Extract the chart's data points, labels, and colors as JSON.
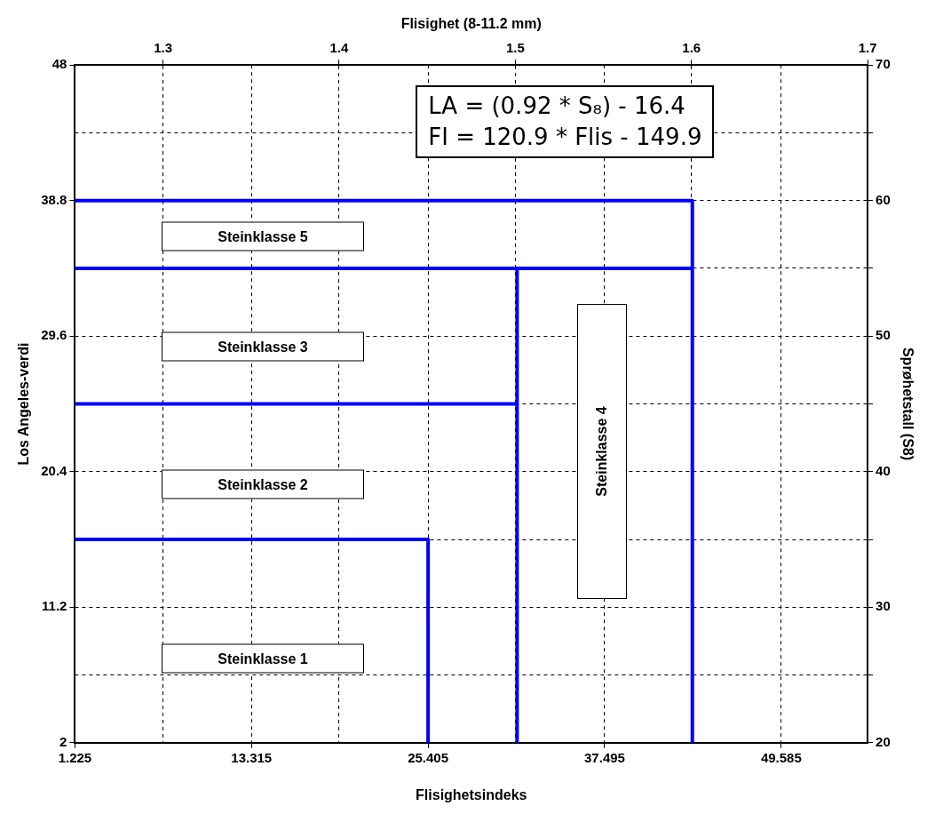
{
  "chart_data": {
    "type": "line",
    "xlabel": "Flisighetsindeks",
    "x2label": "Flisighet (8-11.2 mm)",
    "ylabel": "Los Angeles-verdi",
    "y2label": "Sprøhetstall (S8)",
    "xlim": [
      1.225,
      55.5
    ],
    "xticks": [
      1.225,
      13.315,
      25.405,
      37.495,
      49.585
    ],
    "x2lim": [
      1.25,
      1.7
    ],
    "x2ticks": [
      1.3,
      1.4,
      1.5,
      1.6,
      1.7
    ],
    "ylim": [
      2,
      48
    ],
    "yticks": [
      2,
      11.2,
      20.4,
      29.6,
      38.8,
      48
    ],
    "y2lim": [
      20,
      70
    ],
    "y2ticks": [
      20,
      {
        "value": 25,
        "label": null
      },
      30,
      {
        "value": 35,
        "label": null
      },
      40,
      {
        "value": 45,
        "label": null
      },
      50,
      {
        "value": 55,
        "label": null
      },
      60,
      {
        "value": 65,
        "label": null
      },
      70
    ],
    "series": [
      {
        "axis": "y2",
        "color": "#0000ff",
        "x": [
          1.225,
          25.405,
          25.405
        ],
        "values": [
          35,
          35,
          20
        ]
      },
      {
        "axis": "y2",
        "color": "#0000ff",
        "x": [
          1.225,
          31.5
        ],
        "values": [
          45,
          45
        ]
      },
      {
        "axis": "y2",
        "color": "#0000ff",
        "x": [
          1.225,
          43.5
        ],
        "values": [
          55,
          55
        ]
      },
      {
        "axis": "y2",
        "color": "#0000ff",
        "x": [
          31.5,
          31.5
        ],
        "values": [
          55,
          20
        ]
      },
      {
        "axis": "y2",
        "color": "#0000ff",
        "x": [
          1.225,
          43.5,
          43.5
        ],
        "values": [
          60,
          60,
          20
        ]
      }
    ],
    "annotations": [
      "LA = (0.92 * S₈) - 16.4",
      "FI = 120.9 * Flis - 149.9",
      "Steinklasse 5",
      "Steinklasse 3",
      "Steinklasse 4",
      "Steinklasse 2",
      "Steinklasse 1"
    ],
    "grid": true,
    "legend": false,
    "marker": "none",
    "line_style": "solid"
  }
}
